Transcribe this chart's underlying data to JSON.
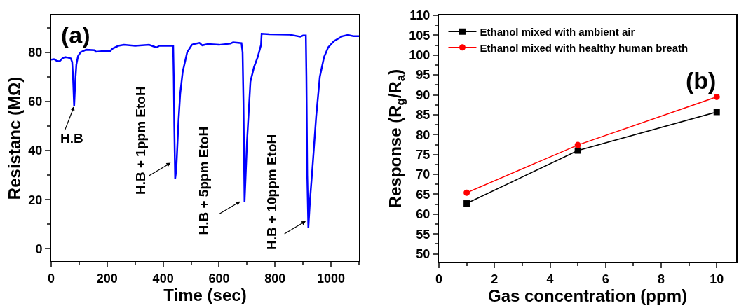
{
  "chart_data": [
    {
      "type": "line",
      "xlabel": "Time (sec)",
      "ylabel": "Resistanc (MΩ)",
      "x": [
        0,
        10,
        20,
        30,
        40,
        50,
        60,
        70,
        75,
        78,
        82,
        86,
        90,
        96,
        105,
        125,
        155,
        160,
        180,
        210,
        220,
        240,
        260,
        300,
        350,
        370,
        380,
        385,
        420,
        436,
        438,
        440,
        443,
        447,
        455,
        461,
        470,
        486,
        503,
        510,
        530,
        540,
        560,
        600,
        640,
        650,
        680,
        684,
        687,
        691,
        695,
        700,
        712,
        725,
        738,
        750,
        752,
        780,
        850,
        890,
        900,
        910,
        912,
        915,
        919,
        925,
        935,
        947,
        960,
        975,
        990,
        1010,
        1040,
        1060,
        1080,
        1100
      ],
      "series": [
        {
          "color": "#0000ff",
          "values": [
            77,
            77.2,
            76.5,
            76.3,
            77.5,
            78,
            77.8,
            77.5,
            76,
            70,
            58,
            68,
            75,
            78.4,
            80,
            81,
            80.8,
            80.2,
            80.4,
            80.4,
            81.5,
            82.6,
            83,
            82.6,
            83,
            82.2,
            82,
            82.7,
            82.6,
            82.6,
            70,
            50,
            28.5,
            32,
            52,
            63,
            72,
            80,
            83,
            83.3,
            83.8,
            82.8,
            83.3,
            83,
            83.5,
            84,
            83.7,
            80,
            60,
            19,
            30,
            44,
            68,
            74,
            78,
            83,
            87.5,
            87.3,
            87.2,
            86.3,
            86.8,
            86.8,
            70,
            30,
            8.5,
            20,
            35,
            54,
            70,
            78,
            82,
            84.5,
            86.5,
            87,
            86.5,
            86.5
          ]
        }
      ],
      "xlim": [
        0,
        1100
      ],
      "ylim": [
        -5,
        95
      ],
      "xticks": [
        0,
        200,
        400,
        600,
        800,
        1000
      ],
      "yticks": [
        0,
        20,
        40,
        60,
        80
      ],
      "marker": "none",
      "grid": false,
      "legend": false,
      "annotations": [
        "(a)",
        {
          "text": "H.B",
          "x": 82,
          "y": 58
        },
        {
          "text": "H.B + 1ppm EtoH",
          "x": 427,
          "y": 35
        },
        {
          "text": "H.B + 5ppm EtoH",
          "x": 676,
          "y": 19.3
        },
        {
          "text": "H.B + 10ppm EtoH",
          "x": 910,
          "y": 11.3
        }
      ]
    },
    {
      "type": "line",
      "xlabel": "Gas concentration (ppm)",
      "ylabel": "Response (R$_{g}$/R$_{a}$)",
      "x": [
        1,
        5,
        10
      ],
      "series": [
        {
          "name": "Ethanol mixed with ambient air",
          "color": "#000000",
          "marker": "square",
          "values": [
            62.7,
            76.0,
            85.7
          ]
        },
        {
          "name": "Ethanol mixed with healthy human breath",
          "color": "#ff0000",
          "marker": "circle",
          "values": [
            65.4,
            77.4,
            89.5
          ]
        }
      ],
      "xlim": [
        0,
        10.7
      ],
      "ylim": [
        48,
        110
      ],
      "xticks": [
        0,
        2,
        4,
        6,
        8,
        10
      ],
      "yticks": [
        50,
        55,
        60,
        65,
        70,
        75,
        80,
        85,
        90,
        95,
        100,
        105,
        110
      ],
      "grid": false,
      "legend": "top left",
      "annotations": [
        "(b)"
      ]
    }
  ]
}
